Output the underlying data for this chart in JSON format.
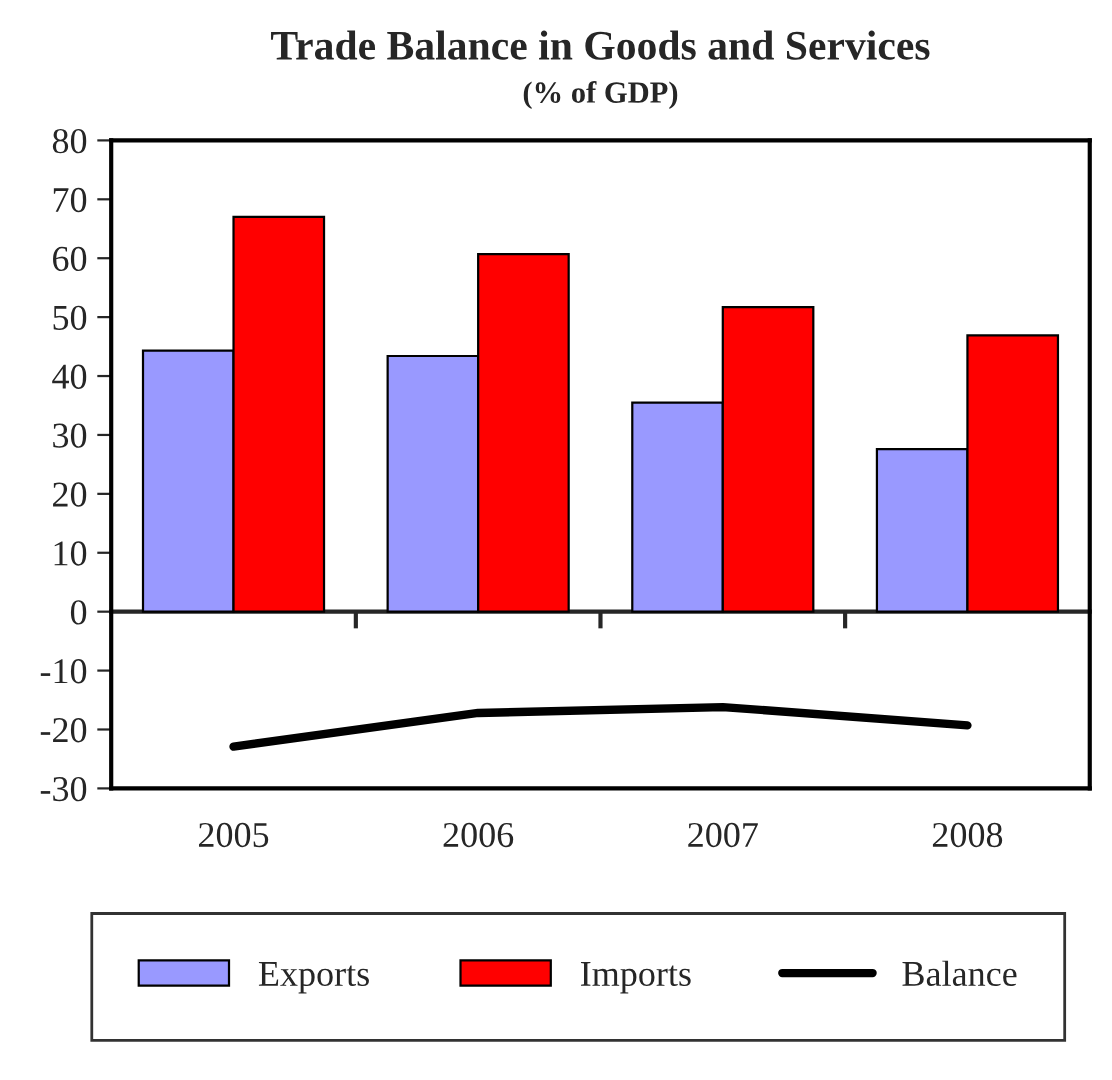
{
  "chart_data": {
    "type": "bar",
    "title": "Trade Balance in Goods and Services",
    "subtitle": "(% of GDP)",
    "categories": [
      "2005",
      "2006",
      "2007",
      "2008"
    ],
    "series": [
      {
        "name": "Exports",
        "color": "#9999ff",
        "values": [
          44.3,
          43.4,
          35.5,
          27.6
        ]
      },
      {
        "name": "Imports",
        "color": "#ff0000",
        "values": [
          67.0,
          60.7,
          51.7,
          46.9
        ]
      },
      {
        "name": "Balance",
        "color": "#000000",
        "type": "line",
        "values": [
          -22.9,
          -17.2,
          -16.2,
          -19.3
        ]
      }
    ],
    "ylim": [
      -30,
      80
    ],
    "yticks": [
      -30,
      -20,
      -10,
      0,
      10,
      20,
      30,
      40,
      50,
      60,
      70,
      80
    ],
    "legend": "bottom",
    "marker": "none",
    "line_style": "solid"
  }
}
